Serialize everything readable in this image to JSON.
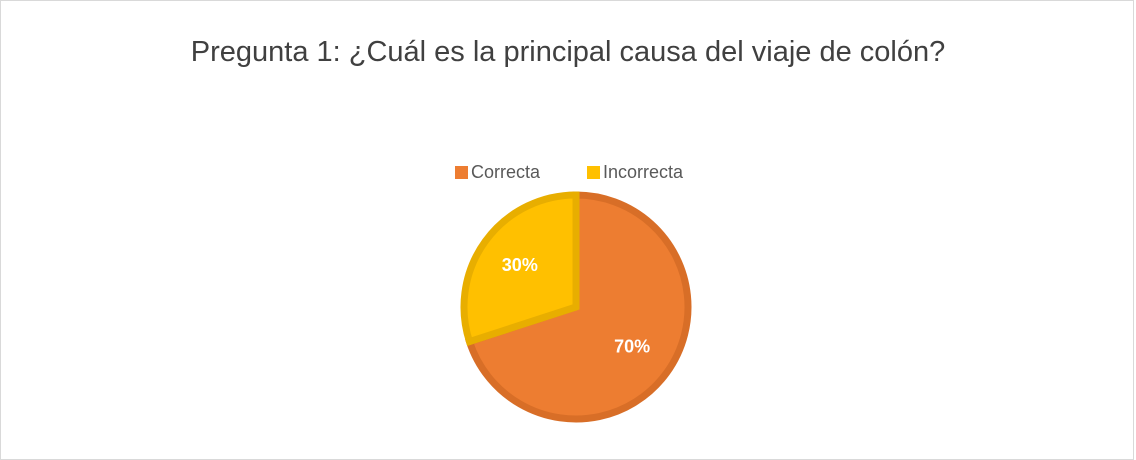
{
  "chart_data": {
    "type": "pie",
    "title": "Pregunta 1: ¿Cuál es la principal causa del viaje de colón?",
    "categories": [
      "Correcta",
      "Incorrecta"
    ],
    "values": [
      70,
      30
    ],
    "value_labels": [
      "70%",
      "30%"
    ],
    "colors": [
      "#ED7D31",
      "#FFC000"
    ],
    "border_colors": [
      "#D86E27",
      "#E8AE00"
    ],
    "legend": "top"
  }
}
